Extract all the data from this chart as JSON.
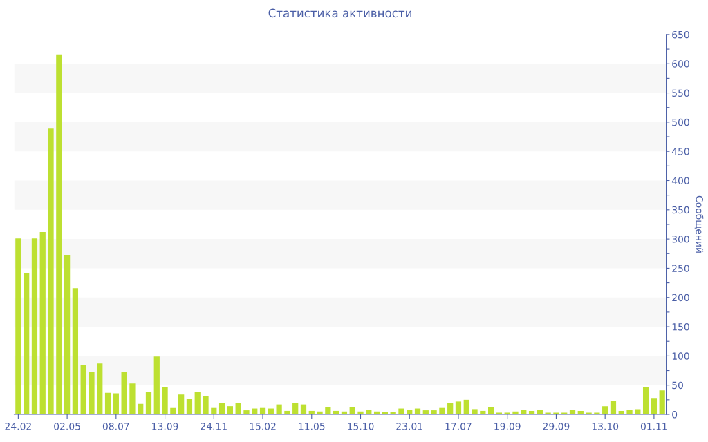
{
  "chart_data": {
    "type": "bar",
    "title": "Статистика активности",
    "ylabel": "Сообщений",
    "categories": [
      "24.02",
      null,
      null,
      null,
      null,
      null,
      "02.05",
      null,
      null,
      null,
      null,
      null,
      "08.07",
      null,
      null,
      null,
      null,
      null,
      "13.09",
      null,
      null,
      null,
      null,
      null,
      "24.11",
      null,
      null,
      null,
      null,
      null,
      "15.02",
      null,
      null,
      null,
      null,
      null,
      "11.05",
      null,
      null,
      null,
      null,
      null,
      "15.10",
      null,
      null,
      null,
      null,
      null,
      "23.01",
      null,
      null,
      null,
      null,
      null,
      "17.07",
      null,
      null,
      null,
      null,
      null,
      "19.09",
      null,
      null,
      null,
      null,
      null,
      "29.09",
      null,
      null,
      null,
      null,
      null,
      "13.10",
      null,
      null,
      null,
      null,
      null,
      "01.11",
      null
    ],
    "values": [
      301,
      241,
      301,
      312,
      489,
      616,
      273,
      216,
      84,
      73,
      87,
      37,
      36,
      73,
      53,
      18,
      39,
      99,
      46,
      11,
      34,
      26,
      39,
      31,
      11,
      19,
      14,
      19,
      7,
      10,
      11,
      10,
      17,
      6,
      20,
      17,
      6,
      5,
      12,
      6,
      5,
      12,
      5,
      8,
      5,
      4,
      4,
      10,
      8,
      10,
      7,
      7,
      11,
      19,
      22,
      25,
      9,
      6,
      12,
      3,
      3,
      5,
      8,
      6,
      7,
      3,
      3,
      3,
      7,
      6,
      3,
      3,
      14,
      23,
      6,
      8,
      9,
      47,
      27,
      41
    ],
    "color": "#bde031",
    "ylim": [
      0,
      650
    ],
    "yticks": [
      0,
      {
        "value": 25,
        "label": null
      },
      50,
      {
        "value": 75,
        "label": null
      },
      100,
      {
        "value": 125,
        "label": null
      },
      150,
      {
        "value": 175,
        "label": null
      },
      200,
      {
        "value": 225,
        "label": null
      },
      250,
      {
        "value": 275,
        "label": null
      },
      300,
      {
        "value": 325,
        "label": null
      },
      350,
      {
        "value": 375,
        "label": null
      },
      400,
      {
        "value": 425,
        "label": null
      },
      450,
      {
        "value": 475,
        "label": null
      },
      500,
      {
        "value": 525,
        "label": null
      },
      550,
      {
        "value": 575,
        "label": null
      },
      600,
      {
        "value": 625,
        "label": null
      },
      650
    ],
    "bands": [
      {
        "axis": "y",
        "from": 50,
        "to": 100,
        "color": "#f7f7f7"
      },
      {
        "axis": "y",
        "from": 150,
        "to": 200,
        "color": "#f7f7f7"
      },
      {
        "axis": "y",
        "from": 250,
        "to": 300,
        "color": "#f7f7f7"
      },
      {
        "axis": "y",
        "from": 350,
        "to": 400,
        "color": "#f7f7f7"
      },
      {
        "axis": "y",
        "from": 450,
        "to": 500,
        "color": "#f7f7f7"
      },
      {
        "axis": "y",
        "from": 550,
        "to": 600,
        "color": "#f7f7f7"
      }
    ],
    "grid": false,
    "legend": false
  }
}
